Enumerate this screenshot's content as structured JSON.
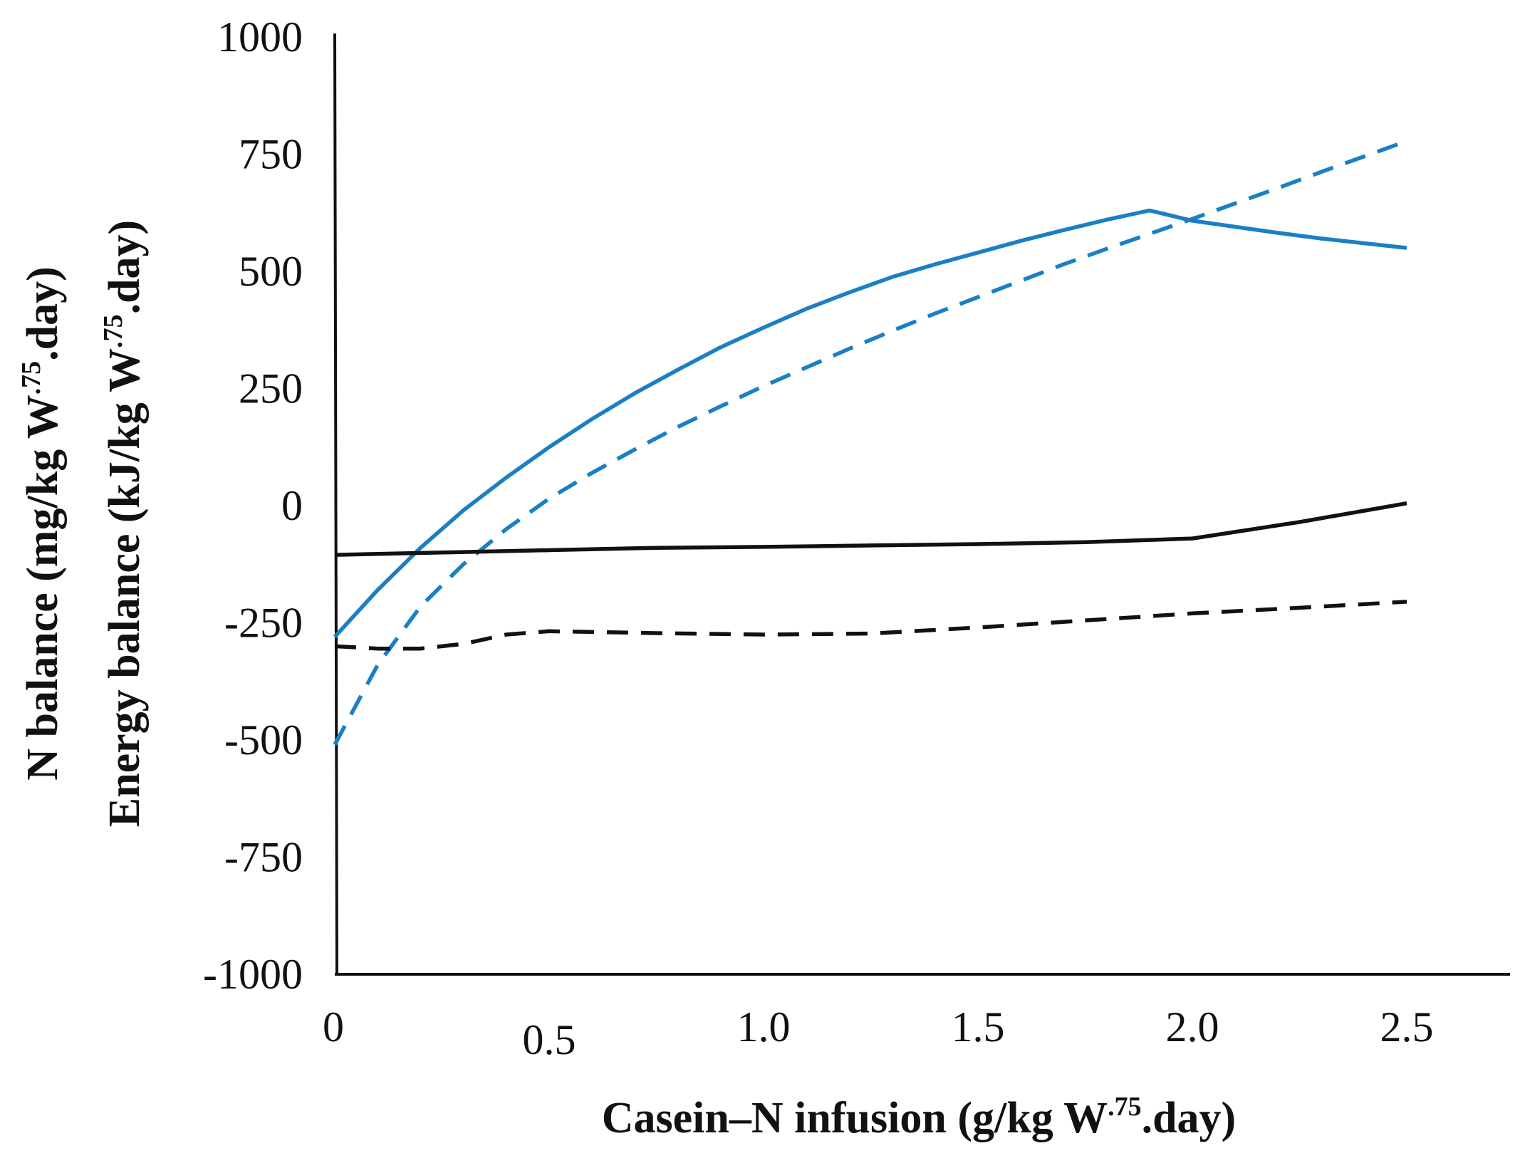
{
  "chart_data": {
    "type": "line",
    "title": "",
    "xlabel": {
      "main": "Casein–N infusion  (g/kg W",
      "sup": ".75",
      "tail": ".day)"
    },
    "ylabel_1": {
      "main": "N balance (mg/kg W",
      "sup": ".75",
      "tail": ".day)"
    },
    "ylabel_2": {
      "main": "Energy balance (kJ/kg W",
      "sup": ".75",
      "tail": ".day)"
    },
    "xlim": [
      0,
      2.7
    ],
    "ylim": [
      -1000,
      1000
    ],
    "x_ticks": [
      {
        "value": 0,
        "label": "0"
      },
      {
        "value": 0.5,
        "label": "0.5"
      },
      {
        "value": 1.0,
        "label": "1.0"
      },
      {
        "value": 1.5,
        "label": "1.5"
      },
      {
        "value": 2.0,
        "label": "2.0"
      },
      {
        "value": 2.5,
        "label": "2.5"
      }
    ],
    "y_ticks": [
      {
        "value": 1000,
        "label": "1000"
      },
      {
        "value": 750,
        "label": "750"
      },
      {
        "value": 500,
        "label": "500"
      },
      {
        "value": 250,
        "label": "250"
      },
      {
        "value": 0,
        "label": "0"
      },
      {
        "value": -250,
        "label": "-250"
      },
      {
        "value": -500,
        "label": "-500"
      },
      {
        "value": -750,
        "label": "-750"
      },
      {
        "value": -1000,
        "label": "-1000"
      }
    ],
    "series": [
      {
        "name": "blue-solid",
        "color": "#1a7fc4",
        "dash": "solid",
        "x": [
          0,
          0.1,
          0.2,
          0.3,
          0.4,
          0.5,
          0.6,
          0.7,
          0.8,
          0.9,
          1.0,
          1.1,
          1.2,
          1.3,
          1.4,
          1.5,
          1.6,
          1.7,
          1.8,
          1.9,
          2.0,
          2.1,
          2.2,
          2.3,
          2.4,
          2.5
        ],
        "y": [
          -280,
          -180,
          -90,
          -10,
          60,
          125,
          185,
          240,
          290,
          338,
          380,
          420,
          455,
          488,
          515,
          540,
          565,
          588,
          610,
          630,
          608,
          595,
          582,
          570,
          560,
          550
        ]
      },
      {
        "name": "blue-dashed",
        "color": "#1a7fc4",
        "dash": "dashed",
        "x": [
          0,
          0.1,
          0.2,
          0.3,
          0.4,
          0.5,
          0.6,
          0.7,
          0.8,
          0.9,
          1.0,
          1.1,
          1.2,
          1.3,
          1.4,
          1.5,
          1.6,
          1.7,
          1.8,
          1.9,
          2.0,
          2.1,
          2.2,
          2.3,
          2.4,
          2.5
        ],
        "y": [
          -510,
          -340,
          -215,
          -125,
          -50,
          15,
          70,
          120,
          168,
          212,
          255,
          295,
          335,
          373,
          410,
          445,
          480,
          515,
          548,
          580,
          612,
          645,
          678,
          712,
          745,
          778
        ]
      },
      {
        "name": "black-solid",
        "color": "#111111",
        "dash": "solid",
        "x": [
          0,
          0.25,
          0.5,
          0.75,
          1.0,
          1.25,
          1.5,
          1.75,
          2.0,
          2.25,
          2.5
        ],
        "y": [
          -105,
          -100,
          -95,
          -90,
          -88,
          -85,
          -82,
          -78,
          -70,
          -35,
          5
        ]
      },
      {
        "name": "black-dashed",
        "color": "#111111",
        "dash": "dashed",
        "x": [
          0,
          0.1,
          0.2,
          0.3,
          0.4,
          0.5,
          0.75,
          1.0,
          1.25,
          1.5,
          1.75,
          2.0,
          2.25,
          2.5
        ],
        "y": [
          -300,
          -305,
          -305,
          -295,
          -275,
          -268,
          -272,
          -275,
          -273,
          -260,
          -245,
          -230,
          -218,
          -205
        ]
      }
    ]
  }
}
